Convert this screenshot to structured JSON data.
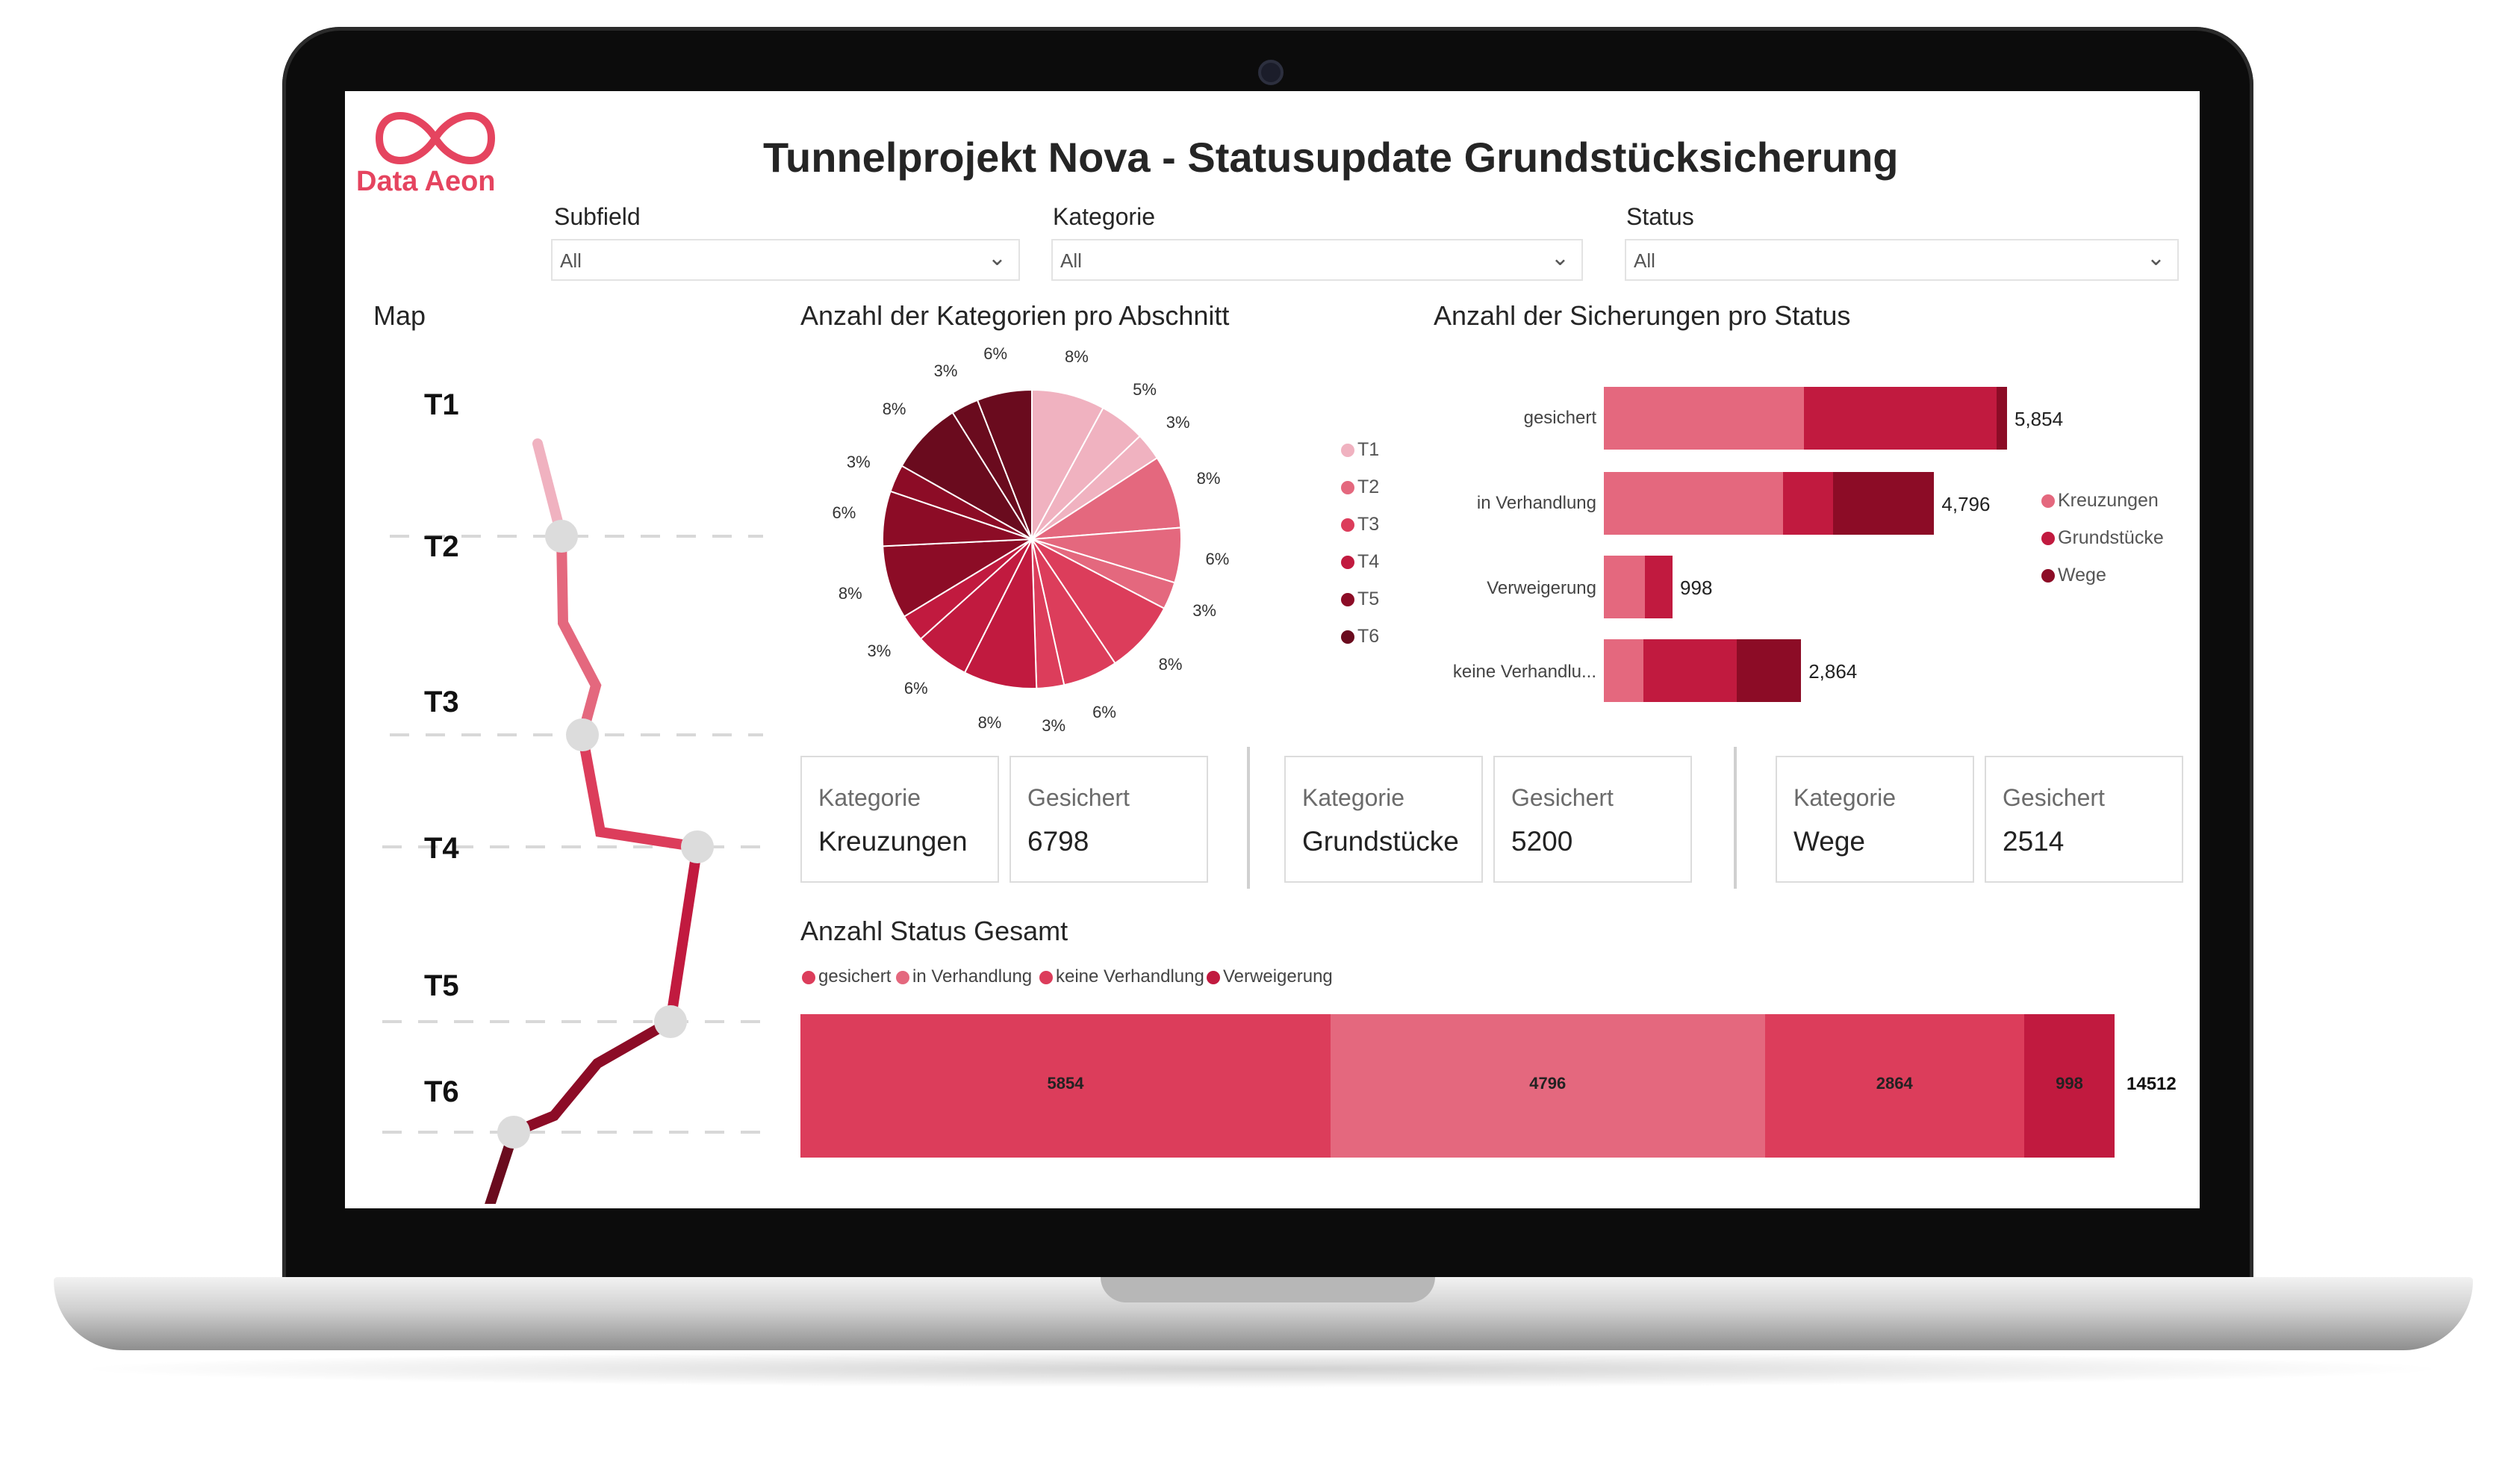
{
  "brand": {
    "name": "Data Aeon",
    "logo_icon": "infinity-icon",
    "color": "#e5445f"
  },
  "title": "Tunnelprojekt Nova - Statusupdate Grundstücksicherung",
  "filters": [
    {
      "label": "Subfield",
      "value": "All"
    },
    {
      "label": "Kategorie",
      "value": "All"
    },
    {
      "label": "Status",
      "value": "All"
    }
  ],
  "map": {
    "title": "Map",
    "sections": [
      "T1",
      "T2",
      "T3",
      "T4",
      "T5",
      "T6"
    ]
  },
  "pie": {
    "title": "Anzahl der Kategorien pro Abschnitt",
    "legend": [
      "T1",
      "T2",
      "T3",
      "T4",
      "T5",
      "T6"
    ],
    "labels": [
      "8%",
      "5%",
      "3%",
      "8%",
      "6%",
      "3%",
      "8%",
      "6%",
      "3%",
      "8%",
      "6%",
      "3%",
      "8%",
      "6%",
      "3%",
      "8%",
      "3%",
      "6%"
    ]
  },
  "status_bars": {
    "title": "Anzahl der Sicherungen pro Status",
    "legend": [
      "Kreuzungen",
      "Grundstücke",
      "Wege"
    ],
    "rows": [
      {
        "label": "gesichert",
        "total": "5,854"
      },
      {
        "label": "in Verhandlung",
        "total": "4,796"
      },
      {
        "label": "Verweigerung",
        "total": "998"
      },
      {
        "label": "keine Verhandlu...",
        "total": "2,864"
      }
    ]
  },
  "cards": [
    {
      "kategorie_label": "Kategorie",
      "kategorie": "Kreuzungen",
      "gesichert_label": "Gesichert",
      "gesichert": "6798"
    },
    {
      "kategorie_label": "Kategorie",
      "kategorie": "Grundstücke",
      "gesichert_label": "Gesichert",
      "gesichert": "5200"
    },
    {
      "kategorie_label": "Kategorie",
      "kategorie": "Wege",
      "gesichert_label": "Gesichert",
      "gesichert": "2514"
    }
  ],
  "status_total": {
    "title": "Anzahl Status Gesamt",
    "legend": [
      "gesichert",
      "in Verhandlung",
      "keine Verhandlung",
      "Verweigerung"
    ],
    "segments": [
      "5854",
      "4796",
      "2864",
      "998"
    ],
    "total": "14512"
  },
  "colors": {
    "pink_light": "#f0b2c0",
    "pink": "#e4687e",
    "red": "#dc3d5b",
    "crimson": "#c11a3f",
    "dark": "#8c0c26",
    "darkest": "#6a0b1e"
  },
  "chart_data": [
    {
      "type": "pie",
      "title": "Anzahl der Kategorien pro Abschnitt",
      "slices": [
        8,
        5,
        3,
        8,
        6,
        3,
        8,
        6,
        3,
        8,
        6,
        3,
        8,
        6,
        3,
        8,
        3,
        6
      ],
      "unit": "%",
      "series": [
        "T1",
        "T2",
        "T3",
        "T4",
        "T5",
        "T6"
      ],
      "legend_position": "right"
    },
    {
      "type": "bar",
      "orientation": "horizontal",
      "stacked": true,
      "title": "Anzahl der Sicherungen pro Status",
      "categories": [
        "gesichert",
        "in Verhandlung",
        "Verweigerung",
        "keine Verhandlu..."
      ],
      "series": [
        {
          "name": "Kreuzungen",
          "values": [
            2900,
            2600,
            600,
            570
          ]
        },
        {
          "name": "Grundstücke",
          "values": [
            2800,
            730,
            398,
            1360
          ]
        },
        {
          "name": "Wege",
          "values": [
            154,
            1466,
            0,
            934
          ]
        }
      ],
      "totals": [
        5854,
        4796,
        998,
        2864
      ],
      "legend_position": "right"
    },
    {
      "type": "bar",
      "orientation": "horizontal",
      "stacked": true,
      "title": "Anzahl Status Gesamt",
      "categories": [
        ""
      ],
      "series": [
        {
          "name": "gesichert",
          "values": [
            5854
          ]
        },
        {
          "name": "in Verhandlung",
          "values": [
            4796
          ]
        },
        {
          "name": "keine Verhandlung",
          "values": [
            2864
          ]
        },
        {
          "name": "Verweigerung",
          "values": [
            998
          ]
        }
      ],
      "total": 14512,
      "legend_position": "top-left"
    }
  ]
}
